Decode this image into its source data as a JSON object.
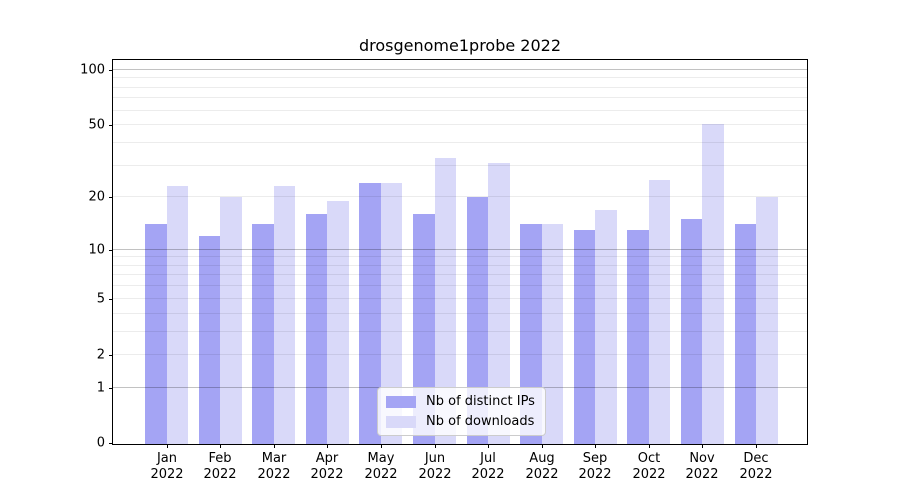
{
  "chart_data": {
    "type": "bar",
    "title": "drosgenome1probe 2022",
    "year_label": "2022",
    "categories": [
      "Jan",
      "Feb",
      "Mar",
      "Apr",
      "May",
      "Jun",
      "Jul",
      "Aug",
      "Sep",
      "Oct",
      "Nov",
      "Dec"
    ],
    "series": [
      {
        "name": "Nb of distinct IPs",
        "color": "#a4a4f4",
        "values": [
          14,
          12,
          14,
          16,
          24,
          16,
          20,
          14,
          13,
          13,
          15,
          14
        ]
      },
      {
        "name": "Nb of downloads",
        "color": "#d9d9f9",
        "values": [
          23,
          20,
          23,
          19,
          24,
          33,
          31,
          14,
          17,
          25,
          51,
          20
        ]
      }
    ],
    "yscale": "log1p",
    "ylim": [
      0,
      113
    ],
    "yticks": [
      0,
      1,
      2,
      5,
      10,
      20,
      50,
      100
    ],
    "grid": {
      "major": [
        1,
        10,
        100
      ],
      "minor": [
        2,
        3,
        4,
        5,
        6,
        7,
        8,
        9,
        20,
        30,
        40,
        50,
        60,
        70,
        80,
        90
      ]
    },
    "legend_position": "bottom-center",
    "xlabel": "",
    "ylabel": ""
  }
}
